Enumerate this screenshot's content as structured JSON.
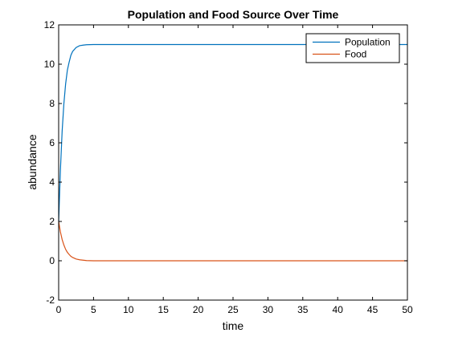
{
  "chart_data": {
    "type": "line",
    "title": "Population and Food Source Over Time",
    "xlabel": "time",
    "ylabel": "abundance",
    "xlim": [
      0,
      50
    ],
    "ylim": [
      -2,
      12
    ],
    "xticks": [
      0,
      5,
      10,
      15,
      20,
      25,
      30,
      35,
      40,
      45,
      50
    ],
    "yticks": [
      -2,
      0,
      2,
      4,
      6,
      8,
      10,
      12
    ],
    "grid": false,
    "legend_position": "top-right",
    "series": [
      {
        "name": "Population",
        "color": "#0072BD",
        "x": [
          0,
          0.25,
          0.5,
          0.75,
          1,
          1.25,
          1.5,
          1.75,
          2,
          2.5,
          3,
          3.5,
          4,
          5,
          6,
          8,
          10,
          15,
          20,
          30,
          40,
          50
        ],
        "y": [
          2.0,
          4.6,
          6.6,
          8.0,
          9.0,
          9.7,
          10.1,
          10.45,
          10.65,
          10.85,
          10.94,
          10.97,
          10.99,
          11.0,
          11.0,
          11.0,
          11.0,
          11.0,
          11.0,
          11.0,
          11.0,
          11.0
        ]
      },
      {
        "name": "Food",
        "color": "#D95319",
        "x": [
          0,
          0.25,
          0.5,
          0.75,
          1,
          1.25,
          1.5,
          1.75,
          2,
          2.5,
          3,
          3.5,
          4,
          5,
          6,
          8,
          10,
          15,
          20,
          30,
          40,
          50
        ],
        "y": [
          2.0,
          1.47,
          1.08,
          0.8,
          0.58,
          0.43,
          0.32,
          0.23,
          0.17,
          0.09,
          0.05,
          0.03,
          0.01,
          0.0,
          0.0,
          0.0,
          0.0,
          0.0,
          0.0,
          0.0,
          0.0,
          0.0
        ]
      }
    ]
  }
}
